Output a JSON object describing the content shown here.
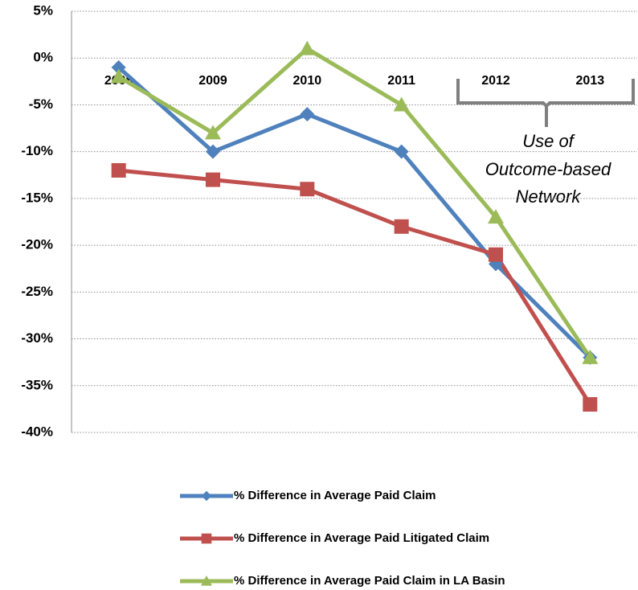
{
  "chart_data": {
    "type": "line",
    "categories": [
      "2008",
      "2009",
      "2010",
      "2011",
      "2012",
      "2013"
    ],
    "series": [
      {
        "name": "% Difference in Average Paid Claim",
        "color": "#4f81bd",
        "marker": "diamond",
        "values": [
          -1,
          -10,
          -6,
          -10,
          -22,
          -32
        ]
      },
      {
        "name": "% Difference in Average Paid Litigated Claim",
        "color": "#c0504d",
        "marker": "square",
        "values": [
          -12,
          -13,
          -14,
          -18,
          -21,
          -37
        ]
      },
      {
        "name": "% Difference in Average Paid Claim in LA Basin",
        "color": "#9bbb59",
        "marker": "triangle",
        "values": [
          -2,
          -8,
          1,
          -5,
          -17,
          -32
        ]
      }
    ],
    "ylim": [
      -40,
      5
    ],
    "yticks": [
      {
        "value": 5,
        "label": "5%"
      },
      {
        "value": 0,
        "label": "0%"
      },
      {
        "value": -5,
        "label": "-5%"
      },
      {
        "value": -10,
        "label": "-10%"
      },
      {
        "value": -15,
        "label": "-15%"
      },
      {
        "value": -20,
        "label": "-20%"
      },
      {
        "value": -25,
        "label": "-25%"
      },
      {
        "value": -30,
        "label": "-30%"
      },
      {
        "value": -35,
        "label": "-35%"
      },
      {
        "value": -40,
        "label": "-40%"
      }
    ],
    "grid": true,
    "annotation": [
      "Use of",
      "Outcome-based",
      "Network"
    ]
  }
}
